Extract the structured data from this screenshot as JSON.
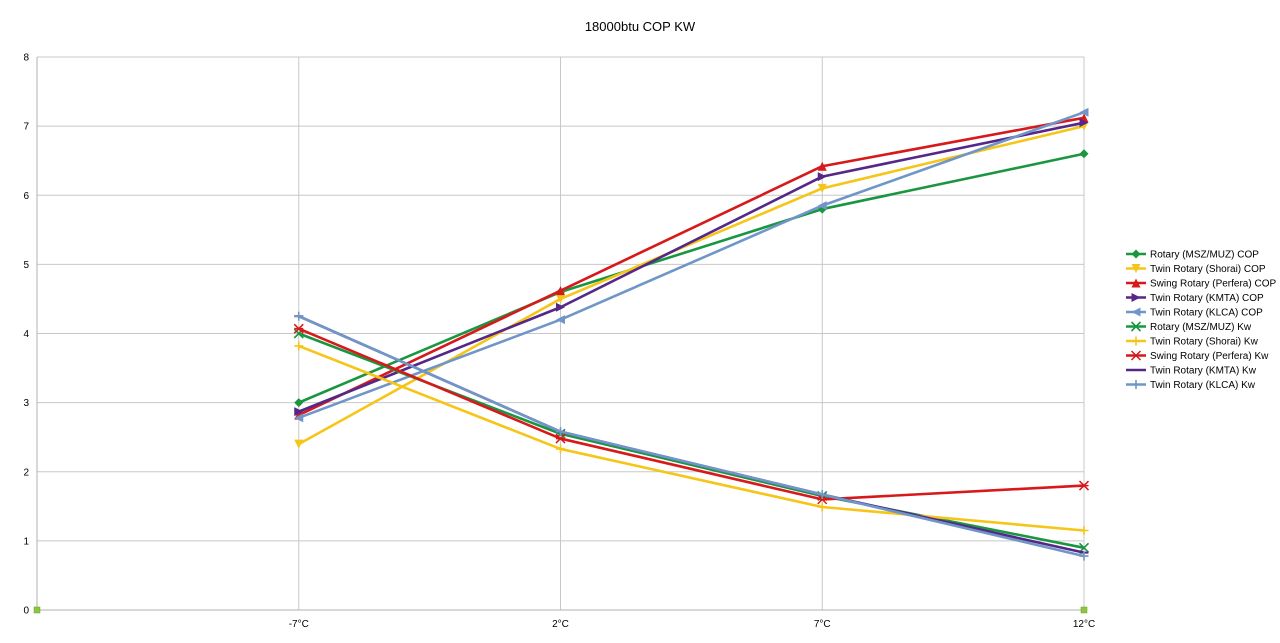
{
  "chart_data": {
    "type": "line",
    "title": "18000btu COP KW",
    "xlabel": "",
    "ylabel": "",
    "categories": [
      "",
      "-7°C",
      "2°C",
      "7°C",
      "12°C"
    ],
    "ylim": [
      0,
      8
    ],
    "yticks": [
      0,
      1,
      2,
      3,
      4,
      5,
      6,
      7,
      8
    ],
    "grid": true,
    "legend_position": "right",
    "series": [
      {
        "name": "Rotary (MSZ/MUZ) COP",
        "color": "#1a9641",
        "marker": "diamond",
        "values": [
          null,
          3.0,
          4.6,
          5.8,
          6.6
        ]
      },
      {
        "name": "Twin Rotary (Shorai) COP",
        "color": "#f5c518",
        "marker": "triangle-down",
        "values": [
          null,
          2.4,
          4.5,
          6.1,
          7.0
        ]
      },
      {
        "name": "Swing Rotary (Perfera) COP",
        "color": "#d7191c",
        "marker": "triangle-up",
        "values": [
          null,
          2.82,
          4.62,
          6.42,
          7.12
        ]
      },
      {
        "name": "Twin Rotary (KMTA) COP",
        "color": "#542788",
        "marker": "triangle-right",
        "values": [
          null,
          2.87,
          4.38,
          6.27,
          7.05
        ]
      },
      {
        "name": "Twin Rotary (KLCA) COP",
        "color": "#7096c8",
        "marker": "triangle-left",
        "values": [
          null,
          2.78,
          4.2,
          5.85,
          7.2
        ]
      },
      {
        "name": "Rotary (MSZ/MUZ) Kw",
        "color": "#1a9641",
        "marker": "x",
        "values": [
          null,
          4.0,
          2.55,
          1.65,
          0.9
        ]
      },
      {
        "name": "Twin Rotary (Shorai) Kw",
        "color": "#f5c518",
        "marker": "plus",
        "values": [
          null,
          3.82,
          2.33,
          1.49,
          1.15
        ]
      },
      {
        "name": "Swing Rotary (Perfera) Kw",
        "color": "#d7191c",
        "marker": "star",
        "values": [
          null,
          4.07,
          2.48,
          1.6,
          1.8
        ]
      },
      {
        "name": "Twin Rotary (KMTA) Kw",
        "color": "#542788",
        "marker": "dash",
        "values": [
          null,
          4.25,
          2.58,
          1.67,
          0.83
        ]
      },
      {
        "name": "Twin Rotary (KLCA) Kw",
        "color": "#7096c8",
        "marker": "plus",
        "values": [
          null,
          4.25,
          2.58,
          1.67,
          0.78
        ]
      }
    ],
    "axis_point_color": "#8dc63f"
  }
}
